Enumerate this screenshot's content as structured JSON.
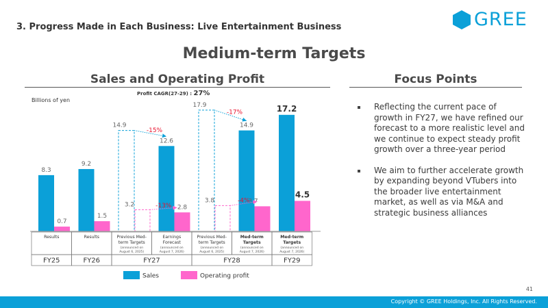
{
  "header": {
    "section_title": "3. Progress Made in Each Business: Live Entertainment Business",
    "logo_text": "GREE",
    "main_title": "Medium-term Targets",
    "left_heading": "Sales and Operating Profit",
    "right_heading": "Focus Points"
  },
  "cagr": {
    "label": "Profit CAGR(27-29) : ",
    "value": "27%"
  },
  "chart_data": {
    "type": "bar",
    "units": "Billions of yen",
    "ylim": [
      0,
      19
    ],
    "categories": [
      {
        "label": "Results",
        "sub": "",
        "fy": "FY25",
        "style": "actual"
      },
      {
        "label": "Results",
        "sub": "",
        "fy": "FY26",
        "style": "actual"
      },
      {
        "label": "Previous Med-term Targets",
        "sub": "(announced on August 6, 2025)",
        "fy": "FY27",
        "style": "previous"
      },
      {
        "label": "Earnings Forecast",
        "sub": "(announced on August 7, 2026)",
        "fy": "FY27",
        "style": "actual"
      },
      {
        "label": "Previous Med-term Targets",
        "sub": "(announced on August 6, 2025)",
        "fy": "FY28",
        "style": "previous"
      },
      {
        "label": "Med-term Targets",
        "sub": "(announced on August 7, 2026)",
        "fy": "FY28",
        "style": "target"
      },
      {
        "label": "Med-term Targets",
        "sub": "(announced on August 7, 2026)",
        "fy": "FY29",
        "style": "target"
      }
    ],
    "series": [
      {
        "name": "Sales",
        "color": "#0ba0d8",
        "values": [
          8.3,
          9.2,
          14.9,
          12.6,
          17.9,
          14.9,
          17.2
        ]
      },
      {
        "name": "Operating profit",
        "color": "#ff66cc",
        "values": [
          0.7,
          1.5,
          3.2,
          2.8,
          3.8,
          3.7,
          4.5
        ]
      }
    ],
    "fiscal_years": [
      "FY25",
      "FY26",
      "FY27",
      "FY28",
      "FY29"
    ],
    "annotations": [
      {
        "text": "-15%",
        "from": [
          2,
          0
        ],
        "to": [
          3,
          0
        ]
      },
      {
        "text": "-13%",
        "from": [
          2,
          1
        ],
        "to": [
          3,
          1
        ]
      },
      {
        "text": "-17%",
        "from": [
          4,
          0
        ],
        "to": [
          5,
          0
        ]
      },
      {
        "text": "-4%",
        "from": [
          4,
          1
        ],
        "to": [
          5,
          1
        ]
      }
    ]
  },
  "focus_points": [
    "Reflecting the current pace of growth in FY27, we have refined our forecast to a more realistic level and we continue to expect steady profit growth over a three-year period",
    "We aim to further accelerate growth by expanding beyond VTubers into the broader live entertainment market, as well as via M&A and strategic business alliances"
  ],
  "footer": {
    "copyright": "Copyright © GREE Holdings, Inc. All Rights Reserved.",
    "page_number": "41"
  }
}
